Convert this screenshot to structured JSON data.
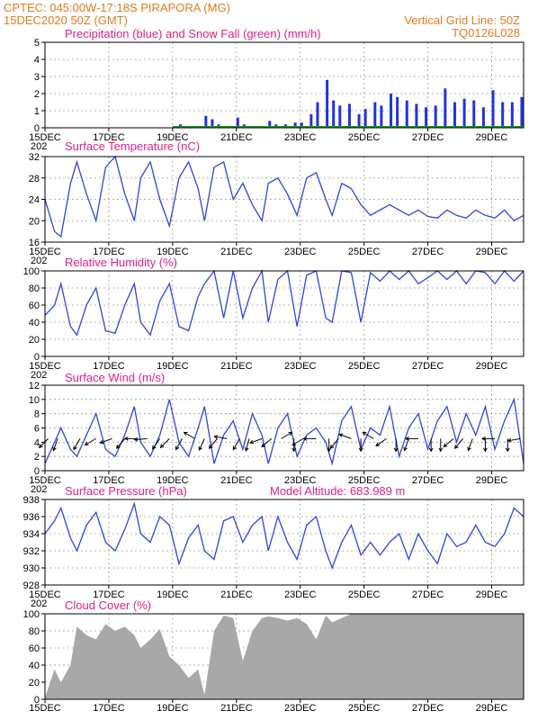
{
  "header": {
    "line1": "CPTEC:   045:00W-17:18S   PIRAPORA (MG)",
    "line2": "15DEC2020 50Z (GMT)",
    "grid_note": "Vertical Grid Line: 50Z",
    "run_code": "TQ0126L028"
  },
  "colors": {
    "header": "#e07c1f",
    "panel_title": "#e0208a",
    "line_blue": "#3344dd",
    "precip_blue": "#2233dd",
    "snow_green": "#1a9a1a",
    "cloud_gray": "#a8a8a8"
  },
  "x_axis": {
    "start": "15DEC",
    "end": "30DEC",
    "tick_labels": [
      "15DEC",
      "17DEC",
      "19DEC",
      "21DEC",
      "23DEC",
      "25DEC",
      "27DEC",
      "29DEC"
    ],
    "year_fragment": "202"
  },
  "chart_data": [
    {
      "id": "precip",
      "type": "bar",
      "title": "Precipitation (blue) and Snow Fall (green) (mm/h)",
      "ylim": [
        0,
        5
      ],
      "yticks": [
        "5",
        "4",
        "3",
        "2",
        "1",
        "0"
      ],
      "grid": true,
      "series": [
        {
          "name": "Precipitation",
          "x": [
            19.0,
            19.2,
            20.0,
            20.2,
            20.4,
            21.0,
            21.2,
            22.0,
            22.2,
            22.5,
            22.8,
            23.0,
            23.3,
            23.5,
            23.8,
            24.0,
            24.2,
            24.5,
            24.8,
            25.0,
            25.3,
            25.5,
            25.8,
            26.0,
            26.3,
            26.6,
            26.9,
            27.2,
            27.5,
            27.8,
            28.1,
            28.4,
            28.7,
            29.0,
            29.3,
            29.6,
            29.9
          ],
          "values": [
            0.1,
            0.2,
            0.7,
            0.5,
            0.2,
            0.6,
            0.2,
            0.4,
            0.2,
            0.2,
            0.3,
            0.3,
            0.8,
            1.5,
            2.8,
            1.6,
            1.3,
            1.4,
            0.8,
            1.1,
            1.5,
            1.3,
            2.0,
            1.8,
            1.6,
            1.4,
            1.2,
            1.3,
            2.3,
            1.5,
            1.7,
            1.6,
            1.2,
            2.2,
            1.5,
            1.5,
            1.8
          ]
        }
      ]
    },
    {
      "id": "temperature",
      "type": "line",
      "title": "Surface Temperature (nC)",
      "ylim": [
        16,
        32
      ],
      "yticks": [
        "32",
        "28",
        "24",
        "20",
        "16"
      ],
      "grid": true,
      "series": [
        {
          "name": "Temperature",
          "x": [
            15.0,
            15.3,
            15.5,
            15.8,
            16.0,
            16.3,
            16.6,
            16.9,
            17.2,
            17.5,
            17.8,
            18.0,
            18.3,
            18.6,
            18.9,
            19.2,
            19.5,
            19.8,
            20.0,
            20.3,
            20.6,
            20.9,
            21.2,
            21.5,
            21.8,
            22.0,
            22.3,
            22.6,
            22.9,
            23.2,
            23.5,
            23.8,
            24.0,
            24.3,
            24.6,
            24.9,
            25.2,
            25.5,
            25.8,
            26.1,
            26.4,
            26.7,
            27.0,
            27.3,
            27.6,
            27.9,
            28.2,
            28.5,
            28.8,
            29.1,
            29.4,
            29.7,
            30.0
          ],
          "values": [
            24,
            18,
            17,
            27,
            31,
            25,
            20,
            30,
            32,
            25,
            20,
            28,
            31,
            24,
            19,
            28,
            31,
            26,
            20,
            30,
            31,
            24,
            27,
            23,
            20,
            27,
            28,
            25,
            21,
            28,
            29,
            24,
            21,
            27,
            26,
            23,
            21,
            22,
            23,
            22,
            21,
            22,
            20.8,
            20.5,
            22,
            21,
            20.5,
            22,
            21,
            20.5,
            22,
            20,
            21
          ]
        }
      ]
    },
    {
      "id": "humidity",
      "type": "line",
      "title": "Relative Humidity (%)",
      "ylim": [
        0,
        100
      ],
      "yticks": [
        "100",
        "80",
        "60",
        "40",
        "20",
        "0"
      ],
      "grid": true,
      "series": [
        {
          "name": "Relative Humidity",
          "x": [
            15.0,
            15.3,
            15.5,
            15.8,
            16.0,
            16.3,
            16.6,
            16.9,
            17.2,
            17.5,
            17.8,
            18.0,
            18.3,
            18.6,
            18.9,
            19.2,
            19.5,
            19.8,
            20.0,
            20.3,
            20.6,
            20.9,
            21.2,
            21.5,
            21.8,
            22.0,
            22.3,
            22.6,
            22.9,
            23.2,
            23.5,
            23.8,
            24.0,
            24.3,
            24.6,
            24.9,
            25.2,
            25.5,
            25.8,
            26.1,
            26.4,
            26.7,
            27.0,
            27.3,
            27.6,
            27.9,
            28.2,
            28.5,
            28.8,
            29.1,
            29.4,
            29.7,
            30.0
          ],
          "values": [
            48,
            60,
            85,
            35,
            25,
            60,
            80,
            30,
            27,
            60,
            85,
            40,
            25,
            65,
            85,
            35,
            30,
            70,
            85,
            100,
            45,
            100,
            45,
            80,
            100,
            40,
            90,
            100,
            35,
            95,
            100,
            45,
            40,
            100,
            98,
            40,
            98,
            88,
            100,
            90,
            100,
            85,
            92,
            100,
            90,
            100,
            85,
            100,
            98,
            85,
            100,
            88,
            100
          ]
        }
      ]
    },
    {
      "id": "wind",
      "type": "line",
      "title": "Surface Wind (m/s)",
      "ylim": [
        0,
        12
      ],
      "yticks": [
        "12",
        "10",
        "8",
        "6",
        "4",
        "2",
        "0"
      ],
      "grid": true,
      "series": [
        {
          "name": "Wind speed",
          "x": [
            15.0,
            15.3,
            15.5,
            15.8,
            16.0,
            16.3,
            16.6,
            16.9,
            17.2,
            17.5,
            17.8,
            18.0,
            18.3,
            18.6,
            18.9,
            19.2,
            19.5,
            19.8,
            20.0,
            20.3,
            20.6,
            20.9,
            21.2,
            21.5,
            21.8,
            22.0,
            22.3,
            22.6,
            22.9,
            23.2,
            23.5,
            23.8,
            24.0,
            24.3,
            24.6,
            24.9,
            25.2,
            25.5,
            25.8,
            26.1,
            26.4,
            26.7,
            27.0,
            27.3,
            27.6,
            27.9,
            28.2,
            28.5,
            28.8,
            29.1,
            29.4,
            29.7,
            30.0
          ],
          "values": [
            1,
            4,
            6,
            3,
            2,
            5,
            8,
            3,
            2,
            5,
            9,
            4,
            2,
            5,
            10,
            4,
            2,
            6,
            9,
            1,
            5,
            7,
            3,
            8,
            5,
            1,
            6,
            8,
            2,
            5,
            6,
            4,
            1,
            7,
            9,
            3,
            6,
            5,
            9,
            2,
            6,
            8,
            3,
            7,
            9,
            4,
            8,
            5,
            9,
            3,
            7,
            10,
            1
          ]
        },
        {
          "name": "Wind direction (to, deg)",
          "x": [
            15.1,
            15.4,
            16.1,
            16.6,
            17.1,
            17.5,
            17.9,
            18.2,
            18.6,
            18.9,
            19.3,
            19.7,
            20.0,
            20.4,
            20.7,
            21.1,
            21.4,
            21.8,
            22.1,
            22.4,
            22.8,
            23.1,
            23.5,
            23.9,
            24.2,
            24.6,
            24.9,
            25.3,
            25.7,
            26.0,
            26.4,
            26.7,
            27.1,
            27.4,
            27.8,
            28.1,
            28.4,
            28.8,
            29.1,
            29.5,
            29.9
          ],
          "values": [
            225,
            200,
            210,
            240,
            250,
            220,
            270,
            265,
            215,
            225,
            210,
            300,
            205,
            220,
            280,
            210,
            195,
            250,
            230,
            60,
            180,
            240,
            270,
            180,
            220,
            290,
            180,
            300,
            235,
            180,
            200,
            270,
            180,
            180,
            230,
            220,
            200,
            180,
            270,
            180,
            260
          ]
        }
      ]
    },
    {
      "id": "pressure",
      "type": "line",
      "title": "Surface Pressure (hPa)",
      "model_altitude": "Model Altitude: 683.989 m",
      "ylim": [
        928,
        938
      ],
      "yticks": [
        "938",
        "936",
        "934",
        "932",
        "930",
        "928"
      ],
      "grid": true,
      "series": [
        {
          "name": "Pressure",
          "x": [
            15.0,
            15.3,
            15.5,
            15.8,
            16.0,
            16.3,
            16.6,
            16.9,
            17.2,
            17.5,
            17.8,
            18.0,
            18.3,
            18.6,
            18.9,
            19.2,
            19.5,
            19.8,
            20.0,
            20.3,
            20.6,
            20.9,
            21.2,
            21.5,
            21.8,
            22.0,
            22.3,
            22.6,
            22.9,
            23.2,
            23.5,
            23.8,
            24.0,
            24.3,
            24.6,
            24.9,
            25.2,
            25.5,
            25.8,
            26.1,
            26.4,
            26.7,
            27.0,
            27.3,
            27.6,
            27.9,
            28.2,
            28.5,
            28.8,
            29.1,
            29.4,
            29.7,
            30.0
          ],
          "values": [
            934,
            935.5,
            937,
            933.5,
            932,
            935,
            936.5,
            933,
            932,
            934.5,
            937.5,
            934,
            933,
            936,
            935,
            930.5,
            933.5,
            935,
            932,
            931,
            935.5,
            936,
            933,
            935,
            936,
            932,
            936,
            933,
            931,
            935,
            936,
            932,
            930,
            933,
            935,
            931.5,
            933,
            931.5,
            933,
            934,
            931,
            934,
            932,
            930.5,
            934,
            932.5,
            933,
            935,
            933,
            932.5,
            934,
            937,
            936
          ]
        }
      ]
    },
    {
      "id": "cloud",
      "type": "area",
      "title": "Cloud Cover (%)",
      "ylim": [
        0,
        100
      ],
      "yticks": [
        "100",
        "80",
        "60",
        "40",
        "20",
        "0"
      ],
      "grid": true,
      "series": [
        {
          "name": "Cloud cover",
          "x": [
            15.0,
            15.3,
            15.5,
            15.8,
            16.0,
            16.3,
            16.6,
            16.9,
            17.2,
            17.5,
            17.8,
            18.0,
            18.3,
            18.6,
            18.9,
            19.2,
            19.5,
            19.8,
            20.0,
            20.3,
            20.6,
            20.9,
            21.2,
            21.5,
            21.8,
            22.0,
            22.3,
            22.6,
            22.9,
            23.2,
            23.5,
            23.8,
            24.0,
            24.3,
            24.6,
            24.9,
            25.2,
            25.5,
            25.8,
            26.1,
            26.4,
            26.7,
            27.0,
            27.3,
            27.6,
            27.9,
            28.2,
            28.5,
            28.8,
            29.1,
            29.4,
            29.7,
            30.0
          ],
          "values": [
            2,
            35,
            20,
            40,
            85,
            75,
            70,
            88,
            80,
            85,
            75,
            60,
            70,
            82,
            50,
            40,
            25,
            35,
            5,
            80,
            98,
            95,
            45,
            80,
            95,
            97,
            95,
            92,
            95,
            88,
            70,
            98,
            90,
            95,
            100,
            100,
            100,
            100,
            100,
            100,
            100,
            100,
            100,
            100,
            100,
            100,
            100,
            100,
            100,
            100,
            100,
            100,
            100
          ]
        }
      ]
    }
  ]
}
